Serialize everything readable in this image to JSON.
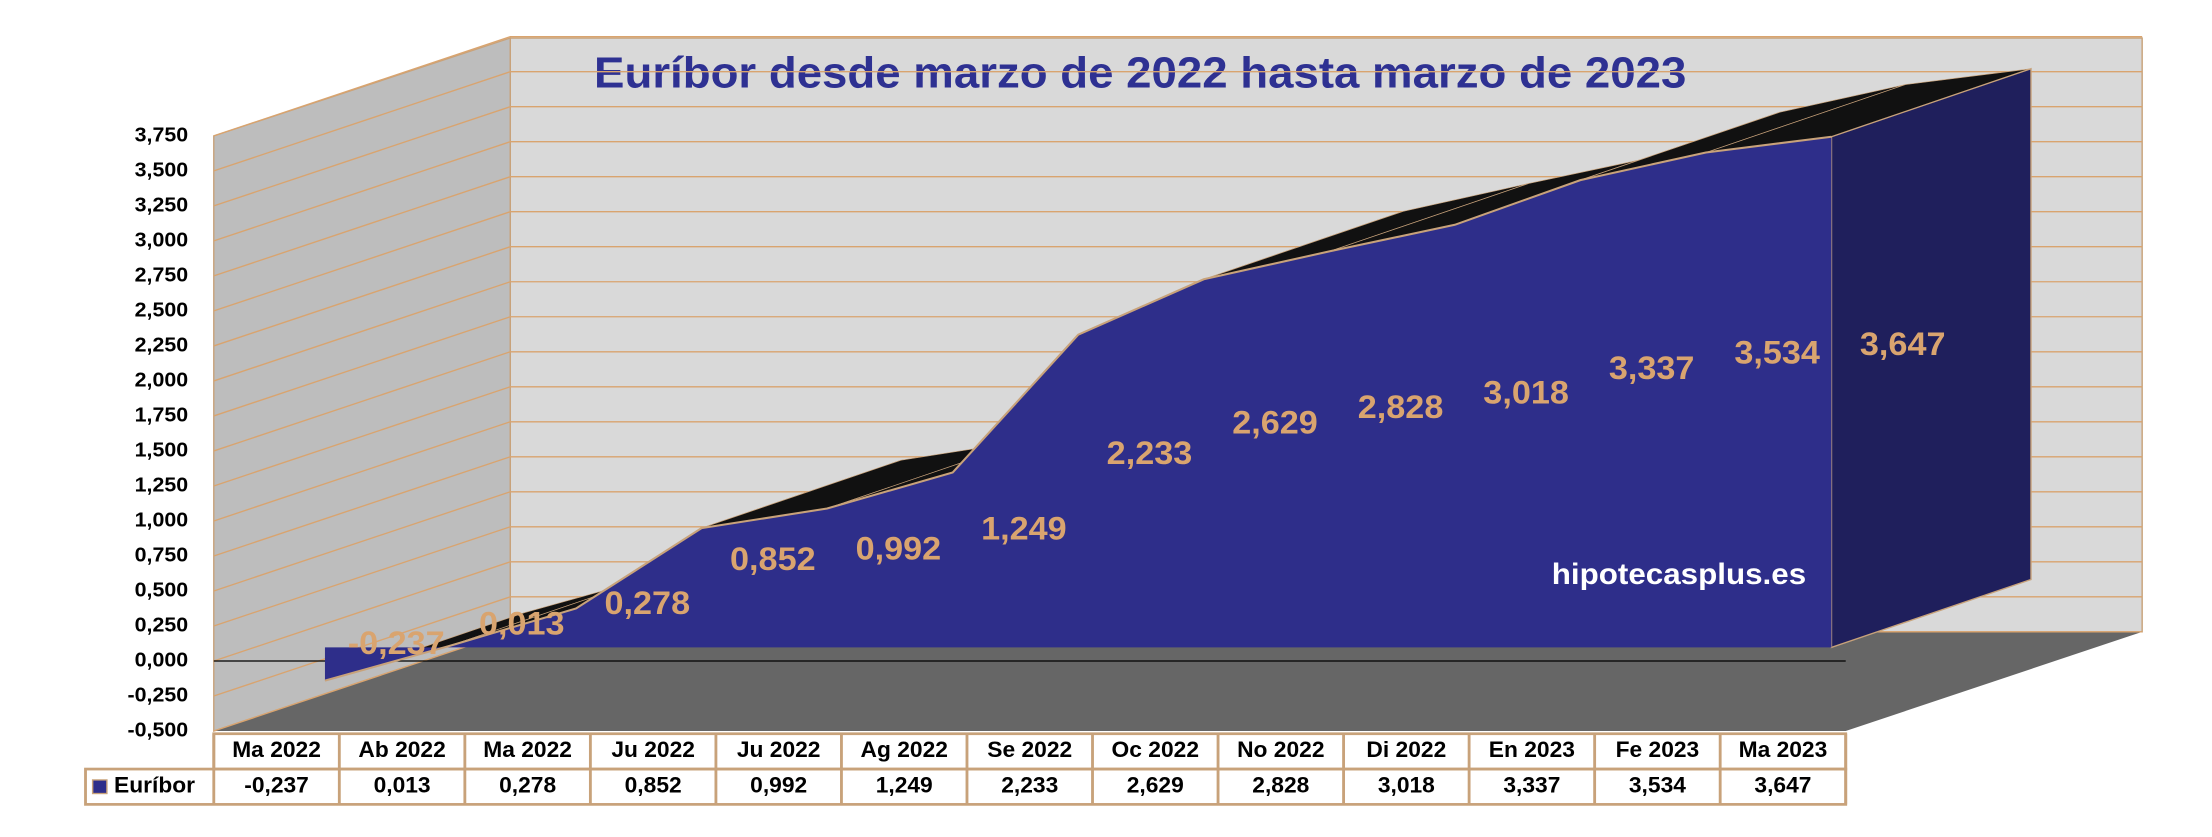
{
  "chart_data": {
    "type": "area",
    "title": "Euríbor desde marzo de 2022 hasta marzo de 2023",
    "categories": [
      "Ma 2022",
      "Ab 2022",
      "Ma 2022",
      "Ju 2022",
      "Ju 2022",
      "Ag 2022",
      "Se 2022",
      "Oc 2022",
      "No 2022",
      "Di 2022",
      "En 2023",
      "Fe 2023",
      "Ma 2023"
    ],
    "series": [
      {
        "name": "Euríbor",
        "color": "#2e2e8a",
        "values": [
          -0.237,
          0.013,
          0.278,
          0.852,
          0.992,
          1.249,
          2.233,
          2.629,
          2.828,
          3.018,
          3.337,
          3.534,
          3.647
        ],
        "value_labels": [
          "-0,237",
          "0,013",
          "0,278",
          "0,852",
          "0,992",
          "1,249",
          "2,233",
          "2,629",
          "2,828",
          "3,018",
          "3,337",
          "3,534",
          "3,647"
        ]
      }
    ],
    "ylim": [
      -0.5,
      3.75
    ],
    "yticks": [
      {
        "value": -0.5,
        "label": "-0,500"
      },
      {
        "value": -0.25,
        "label": "-0,250"
      },
      {
        "value": 0,
        "label": "0,000"
      },
      {
        "value": 0.25,
        "label": "0,250"
      },
      {
        "value": 0.5,
        "label": "0,500"
      },
      {
        "value": 0.75,
        "label": "0,750"
      },
      {
        "value": 1,
        "label": "1,000"
      },
      {
        "value": 1.25,
        "label": "1,250"
      },
      {
        "value": 1.5,
        "label": "1,500"
      },
      {
        "value": 1.75,
        "label": "1,750"
      },
      {
        "value": 2,
        "label": "2,000"
      },
      {
        "value": 2.25,
        "label": "2,250"
      },
      {
        "value": 2.5,
        "label": "2,500"
      },
      {
        "value": 2.75,
        "label": "2,750"
      },
      {
        "value": 3,
        "label": "3,000"
      },
      {
        "value": 3.25,
        "label": "3,250"
      },
      {
        "value": 3.5,
        "label": "3,500"
      },
      {
        "value": 3.75,
        "label": "3,750"
      }
    ],
    "grid": true,
    "watermark": "hipotecasplus.es"
  }
}
